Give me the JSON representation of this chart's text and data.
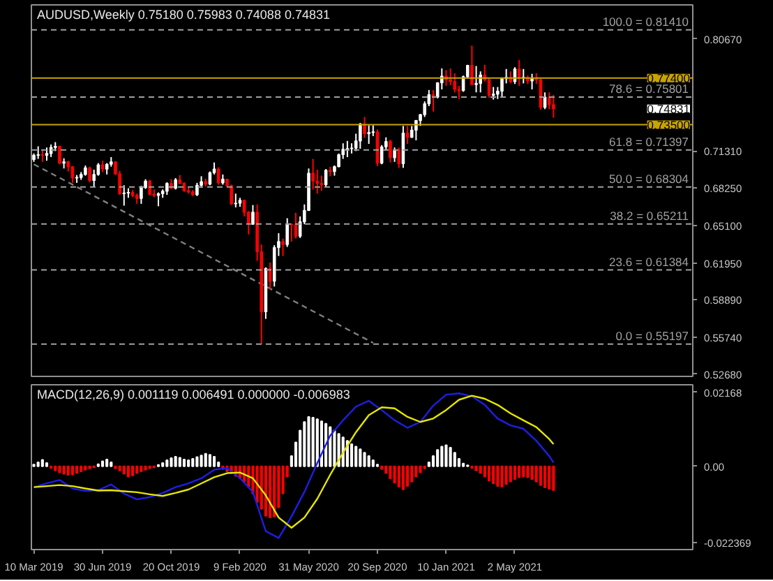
{
  "chart_data": [
    {
      "type": "candlestick",
      "title": "AUDUSD,Weekly  0.75180 0.75983 0.74088 0.74831",
      "x": [
        "2019-03-10",
        "2019-03-17",
        "2019-03-24",
        "2019-03-31",
        "2019-04-07",
        "2019-04-14",
        "2019-04-21",
        "2019-04-28",
        "2019-05-05",
        "2019-05-12",
        "2019-05-19",
        "2019-05-26",
        "2019-06-02",
        "2019-06-09",
        "2019-06-16",
        "2019-06-23",
        "2019-06-30",
        "2019-07-07",
        "2019-07-14",
        "2019-07-21",
        "2019-07-28",
        "2019-08-04",
        "2019-08-11",
        "2019-08-18",
        "2019-08-25",
        "2019-09-01",
        "2019-09-08",
        "2019-09-15",
        "2019-09-22",
        "2019-09-29",
        "2019-10-06",
        "2019-10-13",
        "2019-10-20",
        "2019-10-27",
        "2019-11-03",
        "2019-11-10",
        "2019-11-17",
        "2019-11-24",
        "2019-12-01",
        "2019-12-08",
        "2019-12-15",
        "2019-12-22",
        "2019-12-29",
        "2020-01-05",
        "2020-01-12",
        "2020-01-19",
        "2020-01-26",
        "2020-02-02",
        "2020-02-09",
        "2020-02-16",
        "2020-02-23",
        "2020-03-01",
        "2020-03-08",
        "2020-03-15",
        "2020-03-22",
        "2020-03-29",
        "2020-04-05",
        "2020-04-12",
        "2020-04-19",
        "2020-04-26",
        "2020-05-03",
        "2020-05-10",
        "2020-05-17",
        "2020-05-24",
        "2020-05-31",
        "2020-06-07",
        "2020-06-14",
        "2020-06-21",
        "2020-06-28",
        "2020-07-05",
        "2020-07-12",
        "2020-07-19",
        "2020-07-26",
        "2020-08-02",
        "2020-08-09",
        "2020-08-16",
        "2020-08-23",
        "2020-08-30",
        "2020-09-06",
        "2020-09-13",
        "2020-09-20",
        "2020-09-27",
        "2020-10-04",
        "2020-10-11",
        "2020-10-18",
        "2020-10-25",
        "2020-11-01",
        "2020-11-08",
        "2020-11-15",
        "2020-11-22",
        "2020-11-29",
        "2020-12-06",
        "2020-12-13",
        "2020-12-20",
        "2020-12-27",
        "2021-01-03",
        "2021-01-10",
        "2021-01-17",
        "2021-01-24",
        "2021-01-31",
        "2021-02-07",
        "2021-02-14",
        "2021-02-21",
        "2021-02-28",
        "2021-03-07",
        "2021-03-14",
        "2021-03-21",
        "2021-03-28",
        "2021-04-04",
        "2021-04-11",
        "2021-04-18",
        "2021-04-25",
        "2021-05-02",
        "2021-05-09",
        "2021-05-16",
        "2021-05-23",
        "2021-05-30",
        "2021-06-06",
        "2021-06-13",
        "2021-06-20",
        "2021-06-27",
        "2021-07-04"
      ],
      "ohlc": [
        [
          0.706,
          0.711,
          0.704,
          0.7095
        ],
        [
          0.7095,
          0.717,
          0.7065,
          0.71
        ],
        [
          0.71,
          0.7135,
          0.704,
          0.7095
        ],
        [
          0.7095,
          0.716,
          0.705,
          0.711
        ],
        [
          0.711,
          0.7185,
          0.708,
          0.716
        ],
        [
          0.716,
          0.7205,
          0.713,
          0.717
        ],
        [
          0.717,
          0.7175,
          0.702,
          0.703
        ],
        [
          0.703,
          0.707,
          0.6985,
          0.704
        ],
        [
          0.704,
          0.705,
          0.696,
          0.7
        ],
        [
          0.7,
          0.7005,
          0.6865,
          0.6905
        ],
        [
          0.6905,
          0.693,
          0.6865,
          0.691
        ],
        [
          0.691,
          0.6955,
          0.689,
          0.6935
        ],
        [
          0.6935,
          0.701,
          0.6925,
          0.699
        ],
        [
          0.699,
          0.7,
          0.687,
          0.6885
        ],
        [
          0.6885,
          0.6975,
          0.6835,
          0.6935
        ],
        [
          0.6935,
          0.703,
          0.6925,
          0.7015
        ],
        [
          0.7015,
          0.705,
          0.6955,
          0.698
        ],
        [
          0.698,
          0.703,
          0.6935,
          0.702
        ],
        [
          0.702,
          0.708,
          0.7,
          0.704
        ],
        [
          0.704,
          0.7045,
          0.693,
          0.694
        ],
        [
          0.694,
          0.6965,
          0.6765,
          0.6775
        ],
        [
          0.6775,
          0.6845,
          0.6675,
          0.678
        ],
        [
          0.678,
          0.682,
          0.674,
          0.6785
        ],
        [
          0.6785,
          0.6805,
          0.6745,
          0.676
        ],
        [
          0.676,
          0.6775,
          0.669,
          0.6735
        ],
        [
          0.6735,
          0.684,
          0.669,
          0.6825
        ],
        [
          0.6825,
          0.6895,
          0.6815,
          0.688
        ],
        [
          0.688,
          0.689,
          0.676,
          0.677
        ],
        [
          0.677,
          0.681,
          0.6745,
          0.676
        ],
        [
          0.676,
          0.6785,
          0.667,
          0.6775
        ],
        [
          0.6775,
          0.681,
          0.674,
          0.6795
        ],
        [
          0.6795,
          0.687,
          0.6765,
          0.686
        ],
        [
          0.686,
          0.6895,
          0.6815,
          0.682
        ],
        [
          0.682,
          0.6905,
          0.681,
          0.689
        ],
        [
          0.689,
          0.693,
          0.6855,
          0.686
        ],
        [
          0.686,
          0.687,
          0.679,
          0.68
        ],
        [
          0.68,
          0.683,
          0.6775,
          0.679
        ],
        [
          0.679,
          0.6805,
          0.6755,
          0.6765
        ],
        [
          0.6765,
          0.6865,
          0.6755,
          0.6845
        ],
        [
          0.6845,
          0.692,
          0.6825,
          0.6875
        ],
        [
          0.6875,
          0.69,
          0.6835,
          0.6855
        ],
        [
          0.6855,
          0.696,
          0.6845,
          0.695
        ],
        [
          0.695,
          0.7035,
          0.6935,
          0.698
        ],
        [
          0.698,
          0.6995,
          0.685,
          0.6865
        ],
        [
          0.6865,
          0.6935,
          0.685,
          0.6895
        ],
        [
          0.6895,
          0.69,
          0.683,
          0.684
        ],
        [
          0.684,
          0.685,
          0.668,
          0.669
        ],
        [
          0.669,
          0.6775,
          0.666,
          0.6695
        ],
        [
          0.6695,
          0.674,
          0.6665,
          0.672
        ],
        [
          0.672,
          0.6725,
          0.6585,
          0.662
        ],
        [
          0.662,
          0.663,
          0.6435,
          0.652
        ],
        [
          0.652,
          0.668,
          0.6515,
          0.662
        ],
        [
          0.662,
          0.6685,
          0.6215,
          0.629
        ],
        [
          0.629,
          0.635,
          0.552,
          0.579
        ],
        [
          0.579,
          0.616,
          0.573,
          0.615
        ],
        [
          0.615,
          0.62,
          0.598,
          0.6045
        ],
        [
          0.6045,
          0.6345,
          0.6,
          0.6325
        ],
        [
          0.6325,
          0.6445,
          0.6255,
          0.6375
        ],
        [
          0.6375,
          0.64,
          0.6255,
          0.635
        ],
        [
          0.635,
          0.657,
          0.633,
          0.652
        ],
        [
          0.652,
          0.6525,
          0.6375,
          0.6515
        ],
        [
          0.6515,
          0.6615,
          0.64,
          0.642
        ],
        [
          0.642,
          0.6585,
          0.6405,
          0.654
        ],
        [
          0.654,
          0.6685,
          0.652,
          0.6635
        ],
        [
          0.6635,
          0.6985,
          0.663,
          0.6945
        ],
        [
          0.6945,
          0.7065,
          0.681,
          0.688
        ],
        [
          0.688,
          0.6975,
          0.6775,
          0.686
        ],
        [
          0.686,
          0.6925,
          0.68,
          0.685
        ],
        [
          0.685,
          0.698,
          0.6835,
          0.697
        ],
        [
          0.697,
          0.7,
          0.692,
          0.696
        ],
        [
          0.696,
          0.701,
          0.6925,
          0.7
        ],
        [
          0.7,
          0.711,
          0.6995,
          0.71
        ],
        [
          0.71,
          0.7195,
          0.7065,
          0.7145
        ],
        [
          0.7145,
          0.7215,
          0.708,
          0.715
        ],
        [
          0.715,
          0.7195,
          0.711,
          0.7155
        ],
        [
          0.7155,
          0.7275,
          0.713,
          0.7215
        ],
        [
          0.7215,
          0.7365,
          0.715,
          0.7355
        ],
        [
          0.7355,
          0.7415,
          0.724,
          0.7275
        ],
        [
          0.7275,
          0.7345,
          0.719,
          0.7285
        ],
        [
          0.7285,
          0.7345,
          0.7255,
          0.729
        ],
        [
          0.729,
          0.731,
          0.7005,
          0.703
        ],
        [
          0.703,
          0.718,
          0.702,
          0.7165
        ],
        [
          0.7165,
          0.7245,
          0.7135,
          0.721
        ],
        [
          0.721,
          0.7225,
          0.7035,
          0.7075
        ],
        [
          0.7075,
          0.716,
          0.704,
          0.714
        ],
        [
          0.714,
          0.716,
          0.699,
          0.7025
        ],
        [
          0.7025,
          0.734,
          0.699,
          0.728
        ],
        [
          0.728,
          0.734,
          0.719,
          0.7245
        ],
        [
          0.7245,
          0.734,
          0.724,
          0.7305
        ],
        [
          0.7305,
          0.739,
          0.722,
          0.7385
        ],
        [
          0.7385,
          0.744,
          0.734,
          0.7435
        ],
        [
          0.7435,
          0.7545,
          0.7415,
          0.7525
        ],
        [
          0.7525,
          0.764,
          0.7505,
          0.76
        ],
        [
          0.76,
          0.764,
          0.746,
          0.758
        ],
        [
          0.758,
          0.7705,
          0.757,
          0.77
        ],
        [
          0.77,
          0.782,
          0.7645,
          0.7755
        ],
        [
          0.7755,
          0.7805,
          0.7675,
          0.7725
        ],
        [
          0.7725,
          0.782,
          0.768,
          0.771
        ],
        [
          0.771,
          0.778,
          0.762,
          0.7645
        ],
        [
          0.7645,
          0.7675,
          0.7565,
          0.7635
        ],
        [
          0.7635,
          0.776,
          0.7625,
          0.775
        ],
        [
          0.775,
          0.785,
          0.7735,
          0.7845
        ],
        [
          0.7845,
          0.801,
          0.768,
          0.7685
        ],
        [
          0.7685,
          0.784,
          0.762,
          0.7695
        ],
        [
          0.7695,
          0.7795,
          0.762,
          0.7765
        ],
        [
          0.7765,
          0.785,
          0.771,
          0.7725
        ],
        [
          0.7725,
          0.7735,
          0.7575,
          0.7595
        ],
        [
          0.7595,
          0.7665,
          0.756,
          0.7605
        ],
        [
          0.7605,
          0.7665,
          0.7565,
          0.763
        ],
        [
          0.763,
          0.7745,
          0.7585,
          0.7735
        ],
        [
          0.7735,
          0.7815,
          0.7695,
          0.7745
        ],
        [
          0.7745,
          0.7795,
          0.7695,
          0.771
        ],
        [
          0.771,
          0.783,
          0.769,
          0.7815
        ],
        [
          0.7815,
          0.789,
          0.7675,
          0.774
        ],
        [
          0.774,
          0.7815,
          0.7695,
          0.7745
        ],
        [
          0.7745,
          0.776,
          0.769,
          0.7715
        ],
        [
          0.7715,
          0.7775,
          0.7645,
          0.7735
        ],
        [
          0.7735,
          0.778,
          0.769,
          0.7725
        ],
        [
          0.7725,
          0.7745,
          0.7475,
          0.7495
        ],
        [
          0.7495,
          0.762,
          0.748,
          0.758
        ],
        [
          0.758,
          0.762,
          0.748,
          0.7518
        ],
        [
          0.7518,
          0.75983,
          0.74088,
          0.74831
        ]
      ],
      "colors": [
        "#ffffff",
        "#ffffff",
        "#ff0000",
        "#ffffff",
        "#ffffff",
        "#ffffff",
        "#ff0000",
        "#ffffff",
        "#ff0000",
        "#ff0000",
        "#ffffff",
        "#ffffff",
        "#ffffff",
        "#ff0000",
        "#ffffff",
        "#ffffff",
        "#ff0000",
        "#ffffff",
        "#ffffff",
        "#ff0000",
        "#ff0000",
        "#ffffff",
        "#ffffff",
        "#ff0000",
        "#ff0000",
        "#ffffff",
        "#ffffff",
        "#ff0000",
        "#ff0000",
        "#ffffff",
        "#ffffff",
        "#ffffff",
        "#ff0000",
        "#ffffff",
        "#ff0000",
        "#ff0000",
        "#ff0000",
        "#ff0000",
        "#ffffff",
        "#ffffff",
        "#ff0000",
        "#ffffff",
        "#ffffff",
        "#ff0000",
        "#ffffff",
        "#ff0000",
        "#ff0000",
        "#ffffff",
        "#ffffff",
        "#ff0000",
        "#ff0000",
        "#ffffff",
        "#ff0000",
        "#ff0000",
        "#ffffff",
        "#ff0000",
        "#ffffff",
        "#ffffff",
        "#ff0000",
        "#ffffff",
        "#ff0000",
        "#ff0000",
        "#ffffff",
        "#ffffff",
        "#ffffff",
        "#ff0000",
        "#ff0000",
        "#ff0000",
        "#ffffff",
        "#ff0000",
        "#ffffff",
        "#ffffff",
        "#ffffff",
        "#ffffff",
        "#ffffff",
        "#ffffff",
        "#ffffff",
        "#ff0000",
        "#ffffff",
        "#ffffff",
        "#ff0000",
        "#ffffff",
        "#ffffff",
        "#ff0000",
        "#ffffff",
        "#ff0000",
        "#ffffff",
        "#ff0000",
        "#ffffff",
        "#ffffff",
        "#ffffff",
        "#ffffff",
        "#ffffff",
        "#ff0000",
        "#ffffff",
        "#ffffff",
        "#ff0000",
        "#ff0000",
        "#ff0000",
        "#ff0000",
        "#ffffff",
        "#ffffff",
        "#ff0000",
        "#ffffff",
        "#ffffff",
        "#ff0000",
        "#ff0000",
        "#ffffff",
        "#ffffff",
        "#ffffff",
        "#ffffff",
        "#ff0000",
        "#ffffff",
        "#ff0000",
        "#ffffff",
        "#ff0000",
        "#ffffff",
        "#ff0000",
        "#ff0000",
        "#ffffff",
        "#ff0000",
        "#ff0000"
      ],
      "series": [
        {
          "type": "line",
          "x": [
            "2019-03-10",
            "2020-09-13"
          ],
          "values": [
            0.702,
            0.553
          ],
          "color": "#808080",
          "line_style": "dashed"
        }
      ],
      "xlim": [
        "2019-03-06",
        "2022-02-16"
      ],
      "ylim": [
        0.525,
        0.835
      ],
      "yticks": [
        {
          "value": 0.8067,
          "label": "0.80670"
        },
        {
          "value": 0.7131,
          "label": "0.71310"
        },
        {
          "value": 0.6825,
          "label": "0.68250"
        },
        {
          "value": 0.651,
          "label": "0.65100"
        },
        {
          "value": 0.6195,
          "label": "0.61950"
        },
        {
          "value": 0.5889,
          "label": "0.58890"
        },
        {
          "value": 0.5574,
          "label": "0.55740"
        },
        {
          "value": 0.5268,
          "label": "0.52680"
        }
      ],
      "tick_labels": "y",
      "ref_lines": [
        {
          "axis": "y",
          "value": 0.8141,
          "label": "100.0 = 0.81410",
          "color": "#a0a0a0",
          "line_style": "dashed"
        },
        {
          "axis": "y",
          "value": 0.75801,
          "label": "78.6 = 0.75801",
          "color": "#a0a0a0",
          "line_style": "dashed"
        },
        {
          "axis": "y",
          "value": 0.71397,
          "label": "61.8 = 0.71397",
          "color": "#a0a0a0",
          "line_style": "dashed"
        },
        {
          "axis": "y",
          "value": 0.68304,
          "label": "50.0 = 0.68304",
          "color": "#a0a0a0",
          "line_style": "dashed"
        },
        {
          "axis": "y",
          "value": 0.65211,
          "label": "38.2 = 0.65211",
          "color": "#a0a0a0",
          "line_style": "dashed"
        },
        {
          "axis": "y",
          "value": 0.61384,
          "label": "23.6 = 0.61384",
          "color": "#a0a0a0",
          "line_style": "dashed"
        },
        {
          "axis": "y",
          "value": 0.55197,
          "label": "0.0 = 0.55197",
          "color": "#a0a0a0",
          "line_style": "dashed"
        },
        {
          "axis": "y",
          "value": 0.774,
          "label": "0.77400",
          "color": "#c8a400",
          "line_style": "solid"
        },
        {
          "axis": "y",
          "value": 0.735,
          "label": "0.73500",
          "color": "#c8a400",
          "line_style": "solid"
        }
      ],
      "annotations": [
        "0.74831"
      ]
    },
    {
      "type": "line",
      "title": "MACD(12,26,9) 0.001119 0.006491 0.000000 -0.006983",
      "x": [
        "2019-03-10",
        "2019-03-17",
        "2019-03-24",
        "2019-03-31",
        "2019-04-07",
        "2019-04-14",
        "2019-04-21",
        "2019-04-28",
        "2019-05-05",
        "2019-05-12",
        "2019-05-19",
        "2019-05-26",
        "2019-06-02",
        "2019-06-09",
        "2019-06-16",
        "2019-06-23",
        "2019-06-30",
        "2019-07-07",
        "2019-07-14",
        "2019-07-21",
        "2019-07-28",
        "2019-08-04",
        "2019-08-11",
        "2019-08-18",
        "2019-08-25",
        "2019-09-01",
        "2019-09-08",
        "2019-09-15",
        "2019-09-22",
        "2019-09-29",
        "2019-10-06",
        "2019-10-13",
        "2019-10-20",
        "2019-10-27",
        "2019-11-03",
        "2019-11-10",
        "2019-11-17",
        "2019-11-24",
        "2019-12-01",
        "2019-12-08",
        "2019-12-15",
        "2019-12-22",
        "2019-12-29",
        "2020-01-05",
        "2020-01-12",
        "2020-01-19",
        "2020-01-26",
        "2020-02-02",
        "2020-02-09",
        "2020-02-16",
        "2020-02-23",
        "2020-03-01",
        "2020-03-08",
        "2020-03-15",
        "2020-03-22",
        "2020-03-29",
        "2020-04-05",
        "2020-04-12",
        "2020-04-19",
        "2020-04-26",
        "2020-05-03",
        "2020-05-10",
        "2020-05-17",
        "2020-05-24",
        "2020-05-31",
        "2020-06-07",
        "2020-06-14",
        "2020-06-21",
        "2020-06-28",
        "2020-07-05",
        "2020-07-12",
        "2020-07-19",
        "2020-07-26",
        "2020-08-02",
        "2020-08-09",
        "2020-08-16",
        "2020-08-23",
        "2020-08-30",
        "2020-09-06",
        "2020-09-13",
        "2020-09-20",
        "2020-09-27",
        "2020-10-04",
        "2020-10-11",
        "2020-10-18",
        "2020-10-25",
        "2020-11-01",
        "2020-11-08",
        "2020-11-15",
        "2020-11-22",
        "2020-11-29",
        "2020-12-06",
        "2020-12-13",
        "2020-12-20",
        "2020-12-27",
        "2021-01-03",
        "2021-01-10",
        "2021-01-17",
        "2021-01-24",
        "2021-01-31",
        "2021-02-07",
        "2021-02-14",
        "2021-02-21",
        "2021-02-28",
        "2021-03-07",
        "2021-03-14",
        "2021-03-21",
        "2021-03-28",
        "2021-04-04",
        "2021-04-11",
        "2021-04-18",
        "2021-04-25",
        "2021-05-02",
        "2021-05-09",
        "2021-05-16",
        "2021-05-23",
        "2021-05-30",
        "2021-06-06",
        "2021-06-13",
        "2021-06-20",
        "2021-06-27",
        "2021-07-04"
      ],
      "series": [
        {
          "type": "bar",
          "color": "#ffffff",
          "values": [
            0.0005,
            0.0012,
            0.0019,
            0.001,
            null,
            null,
            null,
            null,
            null,
            null,
            null,
            null,
            null,
            null,
            null,
            0.0006,
            0.0015,
            0.002,
            0.0012,
            null,
            null,
            null,
            null,
            null,
            null,
            null,
            null,
            null,
            null,
            0.0004,
            0.001,
            0.0018,
            0.0024,
            0.0028,
            0.0025,
            0.002,
            0.0018,
            0.0022,
            0.0027,
            0.0032,
            0.0037,
            0.0034,
            0.0028,
            0.0012,
            null,
            null,
            null,
            null,
            null,
            null,
            null,
            null,
            null,
            null,
            null,
            null,
            null,
            null,
            null,
            null,
            0.003,
            0.007,
            0.0105,
            0.013,
            0.0145,
            0.0143,
            0.0138,
            0.0132,
            0.0125,
            0.0115,
            0.0105,
            0.0095,
            0.0085,
            0.0075,
            0.0065,
            0.0058,
            0.005,
            0.004,
            0.003,
            0.0018,
            0.0005,
            null,
            null,
            null,
            null,
            null,
            null,
            null,
            null,
            null,
            null,
            null,
            0.0012,
            0.003,
            0.0048,
            0.0058,
            0.0062,
            0.0055,
            0.004,
            0.0022,
            0.0008,
            0.0003,
            null,
            null,
            null,
            null,
            null,
            null,
            null,
            null,
            null,
            null,
            null,
            null,
            null,
            null,
            null,
            null,
            null,
            null,
            null,
            null
          ]
        },
        {
          "type": "bar",
          "color": "#ff0000",
          "values": [
            null,
            null,
            null,
            null,
            -0.0005,
            -0.0012,
            -0.0018,
            -0.0022,
            -0.0025,
            -0.0024,
            -0.002,
            -0.0015,
            -0.001,
            -0.0006,
            -0.0003,
            null,
            null,
            null,
            null,
            -0.0006,
            -0.0012,
            -0.0022,
            -0.003,
            -0.0027,
            -0.002,
            -0.0015,
            -0.001,
            -0.0006,
            -0.0003,
            null,
            null,
            null,
            null,
            null,
            null,
            null,
            null,
            null,
            null,
            null,
            null,
            null,
            null,
            null,
            -0.0008,
            -0.0015,
            -0.002,
            -0.0028,
            -0.0035,
            -0.0045,
            -0.006,
            -0.008,
            -0.0105,
            -0.0125,
            -0.0145,
            -0.015,
            -0.0148,
            -0.012,
            -0.008,
            -0.003,
            null,
            null,
            null,
            null,
            null,
            null,
            null,
            null,
            null,
            null,
            null,
            null,
            null,
            null,
            null,
            null,
            null,
            null,
            null,
            null,
            null,
            -0.0008,
            -0.002,
            -0.0035,
            -0.0048,
            -0.006,
            -0.0068,
            -0.0058,
            -0.0045,
            -0.003,
            -0.0018,
            -0.0006,
            null,
            null,
            null,
            null,
            null,
            null,
            null,
            null,
            null,
            null,
            -0.0005,
            -0.0012,
            -0.002,
            -0.003,
            -0.0042,
            -0.005,
            -0.0058,
            -0.006,
            -0.0052,
            -0.0045,
            -0.0038,
            -0.0032,
            -0.003,
            -0.0032,
            -0.0038,
            -0.0045,
            -0.0055,
            -0.0062,
            -0.0066,
            -0.007
          ]
        },
        {
          "type": "line",
          "color": "#1e1ee6",
          "x": [
            "2019-03-10",
            "2019-03-31",
            "2019-04-21",
            "2019-05-12",
            "2019-06-02",
            "2019-06-23",
            "2019-07-14",
            "2019-08-04",
            "2019-08-25",
            "2019-09-15",
            "2019-10-06",
            "2019-10-27",
            "2019-11-17",
            "2019-12-08",
            "2019-12-29",
            "2020-01-19",
            "2020-02-09",
            "2020-03-01",
            "2020-03-22",
            "2020-04-12",
            "2020-05-03",
            "2020-05-24",
            "2020-06-14",
            "2020-07-05",
            "2020-07-26",
            "2020-08-16",
            "2020-09-06",
            "2020-09-27",
            "2020-10-18",
            "2020-11-08",
            "2020-11-29",
            "2020-12-20",
            "2021-01-10",
            "2021-01-31",
            "2021-02-21",
            "2021-03-14",
            "2021-04-04",
            "2021-04-25",
            "2021-05-16",
            "2021-06-06",
            "2021-06-27",
            "2021-07-04"
          ],
          "values": [
            -0.0061,
            -0.005,
            -0.004,
            -0.0065,
            -0.0072,
            -0.007,
            -0.0053,
            -0.008,
            -0.0097,
            -0.009,
            -0.0078,
            -0.0061,
            -0.005,
            -0.0035,
            -0.001,
            -0.0005,
            -0.0035,
            -0.0075,
            -0.019,
            -0.021,
            -0.0147,
            -0.0075,
            0.001,
            0.009,
            0.0135,
            0.0175,
            0.0192,
            0.0165,
            0.0135,
            0.0113,
            0.013,
            0.0178,
            0.021,
            0.0214,
            0.0205,
            0.018,
            0.014,
            0.012,
            0.011,
            0.0075,
            0.003,
            0.0011
          ]
        },
        {
          "type": "line",
          "color": "#e6e600",
          "x": [
            "2019-03-10",
            "2019-03-31",
            "2019-04-21",
            "2019-05-12",
            "2019-06-02",
            "2019-06-23",
            "2019-07-14",
            "2019-08-04",
            "2019-08-25",
            "2019-09-15",
            "2019-10-06",
            "2019-10-27",
            "2019-11-17",
            "2019-12-08",
            "2019-12-29",
            "2020-01-19",
            "2020-02-09",
            "2020-03-01",
            "2020-03-22",
            "2020-04-12",
            "2020-05-03",
            "2020-05-24",
            "2020-06-14",
            "2020-07-05",
            "2020-07-26",
            "2020-08-16",
            "2020-09-06",
            "2020-09-27",
            "2020-10-18",
            "2020-11-08",
            "2020-11-29",
            "2020-12-20",
            "2021-01-10",
            "2021-01-31",
            "2021-02-21",
            "2021-03-14",
            "2021-04-04",
            "2021-04-25",
            "2021-05-16",
            "2021-06-06",
            "2021-06-27",
            "2021-07-04"
          ],
          "values": [
            -0.0061,
            -0.0058,
            -0.0055,
            -0.0058,
            -0.0065,
            -0.0071,
            -0.007,
            -0.0073,
            -0.0076,
            -0.0082,
            -0.0087,
            -0.0078,
            -0.0068,
            -0.005,
            -0.0032,
            -0.002,
            -0.0018,
            -0.0035,
            -0.0085,
            -0.015,
            -0.018,
            -0.015,
            -0.0095,
            -0.0025,
            0.004,
            0.01,
            0.015,
            0.0173,
            0.017,
            0.0145,
            0.013,
            0.014,
            0.0165,
            0.0195,
            0.0207,
            0.0198,
            0.018,
            0.0155,
            0.0135,
            0.0115,
            0.008,
            0.0065
          ]
        }
      ],
      "xlim": [
        "2019-03-06",
        "2022-02-16"
      ],
      "xticks": [
        {
          "value": "2019-03-10",
          "label": "10 Mar 2019"
        },
        {
          "value": "2019-06-30",
          "label": "30 Jun 2019"
        },
        {
          "value": "2019-10-20",
          "label": "20 Oct 2019"
        },
        {
          "value": "2020-02-09",
          "label": "9 Feb 2020"
        },
        {
          "value": "2020-05-31",
          "label": "31 May 2020"
        },
        {
          "value": "2020-09-20",
          "label": "20 Sep 2020"
        },
        {
          "value": "2021-01-10",
          "label": "10 Jan 2021"
        },
        {
          "value": "2021-05-02",
          "label": "2 May 2021"
        }
      ],
      "ylim": [
        -0.0244,
        0.0239
      ],
      "yticks": [
        0.02168,
        {
          "value": 0,
          "label": "0.00"
        },
        -0.022369
      ]
    }
  ]
}
